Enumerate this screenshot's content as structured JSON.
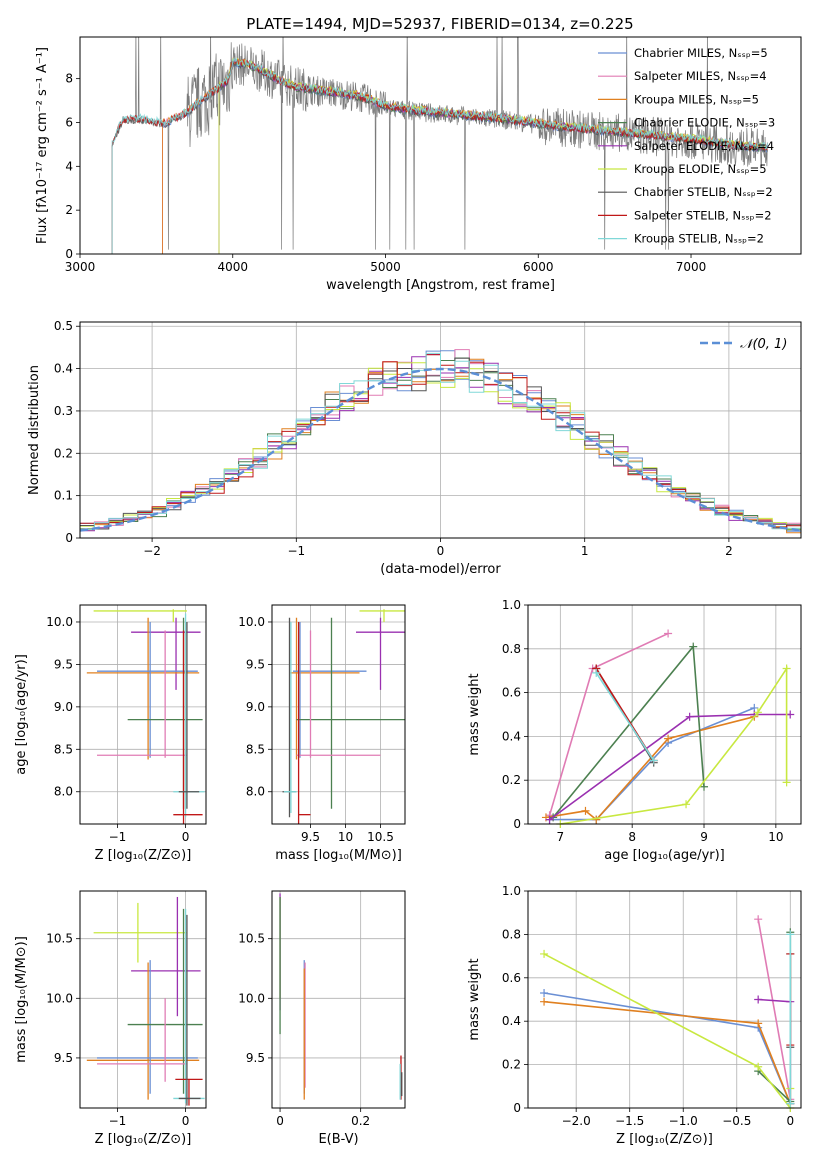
{
  "figure": {
    "title": "PLATE=1494, MJD=52937, FIBERID=0134, z=0.225"
  },
  "chart_data": [
    {
      "id": "spectrum",
      "type": "line",
      "xlabel": "wavelength [Angstrom, rest frame]",
      "ylabel": "Flux [fλ10⁻¹⁷ erg cm⁻² s⁻¹ A⁻¹]",
      "xlim": [
        3000,
        7720
      ],
      "ylim": [
        0,
        9.9
      ],
      "xticks": [
        3000,
        4000,
        5000,
        6000,
        7000
      ],
      "yticks": [
        0,
        2,
        4,
        6,
        8
      ],
      "legend_position": "top-right",
      "series": [
        {
          "name": "Chabrier MILES, Nₛₛₚ=5",
          "color": "#6a8fd4",
          "start": 3540
        },
        {
          "name": "Salpeter MILES, Nₛₛₚ=4",
          "color": "#e07bb4",
          "start": 3540
        },
        {
          "name": "Kroupa MILES, Nₛₛₚ=5",
          "color": "#e08020",
          "start": 3540
        },
        {
          "name": "Chabrier ELODIE, Nₛₛₚ=3",
          "color": "#4c8050",
          "start": 3910
        },
        {
          "name": "Salpeter ELODIE, Nₛₛₚ=4",
          "color": "#9a30b0",
          "start": 3910
        },
        {
          "name": "Kroupa ELODIE, Nₛₛₚ=5",
          "color": "#c8e840",
          "start": 3910
        },
        {
          "name": "Chabrier STELIB, Nₛₛₚ=2",
          "color": "#555555",
          "start": 3210
        },
        {
          "name": "Salpeter STELIB, Nₛₛₚ=2",
          "color": "#c01818",
          "start": 3210
        },
        {
          "name": "Kroupa STELIB, Nₛₛₚ=2",
          "color": "#80d8d8",
          "start": 3210
        }
      ],
      "model_shape": {
        "x": [
          3210,
          3280,
          3400,
          3550,
          3700,
          3800,
          3900,
          3970,
          4000,
          4100,
          4200,
          4300,
          4400,
          4500,
          4600,
          4800,
          4900,
          5000,
          5200,
          5500,
          5800,
          6100,
          6400,
          6700,
          7000,
          7300,
          7500
        ],
        "y": [
          5.0,
          6.1,
          6.1,
          5.9,
          6.4,
          7.0,
          7.5,
          7.9,
          8.7,
          8.6,
          8.3,
          7.9,
          7.6,
          7.5,
          7.4,
          7.2,
          7.0,
          6.7,
          6.5,
          6.3,
          6.1,
          5.8,
          5.6,
          5.4,
          5.2,
          4.9,
          4.8
        ]
      }
    },
    {
      "id": "residuals",
      "type": "step",
      "xlabel": "(data-model)/error",
      "ylabel": "Normed distribution",
      "xlim": [
        -2.5,
        2.5
      ],
      "ylim": [
        0,
        0.51
      ],
      "xticks": [
        -2,
        -1,
        0,
        1,
        2
      ],
      "yticks": [
        0.0,
        0.1,
        0.2,
        0.3,
        0.4,
        0.5
      ],
      "legend": [
        {
          "name": "𝒩(0, 1)",
          "color": "#5b8fd6",
          "style": "dashed"
        }
      ],
      "legend_position": "top-right",
      "grid": true
    },
    {
      "id": "age-vs-Z",
      "type": "errorbar",
      "xlabel": "Z [log₁₀(Z/Z⊙)]",
      "ylabel": "age  [log₁₀(age/yr)]",
      "xlim": [
        -1.55,
        0.3
      ],
      "ylim": [
        7.62,
        10.2
      ],
      "xticks": [
        -1,
        0
      ],
      "yticks": [
        8.0,
        8.5,
        9.0,
        9.5,
        10.0
      ],
      "grid": true
    },
    {
      "id": "age-vs-mass",
      "type": "errorbar",
      "xlabel": "mass [log₁₀(M/M⊙)]",
      "ylabel": "",
      "xlim": [
        8.95,
        10.85
      ],
      "ylim": [
        7.62,
        10.2
      ],
      "xticks": [
        9.5,
        10.0,
        10.5
      ],
      "yticks": [
        8.0,
        8.5,
        9.0,
        9.5,
        10.0
      ],
      "grid": true
    },
    {
      "id": "weight-vs-age",
      "type": "line",
      "xlabel": "age  [log₁₀(age/yr)]",
      "ylabel": "mass weight",
      "xlim": [
        6.55,
        10.35
      ],
      "ylim": [
        0,
        1.0
      ],
      "xticks": [
        7,
        8,
        9,
        10
      ],
      "yticks": [
        0.0,
        0.2,
        0.4,
        0.6,
        0.8,
        1.0
      ],
      "grid": true,
      "series": [
        {
          "color": "#6a8fd4",
          "x": [
            6.85,
            7.5,
            8.5,
            9.7
          ],
          "y": [
            0.02,
            0.02,
            0.37,
            0.53
          ]
        },
        {
          "color": "#e07bb4",
          "x": [
            6.85,
            7.45,
            8.5
          ],
          "y": [
            0.04,
            0.71,
            0.87
          ]
        },
        {
          "color": "#e08020",
          "x": [
            6.8,
            7.35,
            7.5,
            8.5,
            9.7
          ],
          "y": [
            0.03,
            0.06,
            0.02,
            0.39,
            0.49
          ]
        },
        {
          "color": "#4c8050",
          "x": [
            6.9,
            8.85,
            9.0
          ],
          "y": [
            0.03,
            0.81,
            0.17
          ]
        },
        {
          "color": "#9a30b0",
          "x": [
            6.85,
            8.8,
            9.7,
            10.2
          ],
          "y": [
            0.02,
            0.49,
            0.5,
            0.5
          ]
        },
        {
          "color": "#c8e840",
          "x": [
            7.0,
            8.75,
            9.75,
            10.15,
            10.15
          ],
          "y": [
            0.0,
            0.09,
            0.51,
            0.71,
            0.19
          ]
        },
        {
          "color": "#555555",
          "x": [
            7.5,
            8.3
          ],
          "y": [
            0.71,
            0.28
          ]
        },
        {
          "color": "#c01818",
          "x": [
            7.5,
            8.3
          ],
          "y": [
            0.71,
            0.29
          ]
        },
        {
          "color": "#80d8d8",
          "x": [
            7.5,
            8.3
          ],
          "y": [
            0.69,
            0.29
          ]
        }
      ]
    },
    {
      "id": "mass-vs-Z",
      "type": "errorbar",
      "xlabel": "Z [log₁₀(Z/Z⊙)]",
      "ylabel": "mass [log₁₀(M/M⊙)]",
      "xlim": [
        -1.55,
        0.3
      ],
      "ylim": [
        9.08,
        10.9
      ],
      "xticks": [
        -1,
        0
      ],
      "yticks": [
        9.5,
        10.0,
        10.5
      ],
      "grid": true
    },
    {
      "id": "mass-vs-ebv",
      "type": "errorbar",
      "xlabel": "E(B-V)",
      "ylabel": "",
      "xlim": [
        -0.02,
        0.31
      ],
      "ylim": [
        9.08,
        10.9
      ],
      "xticks": [
        0.0,
        0.2
      ],
      "yticks": [
        9.5,
        10.0,
        10.5
      ],
      "grid": true
    },
    {
      "id": "weight-vs-Z",
      "type": "line",
      "xlabel": "Z [log₁₀(Z/Z⊙)]",
      "ylabel": "mass weight",
      "xlim": [
        -2.45,
        0.1
      ],
      "ylim": [
        0,
        1.0
      ],
      "xticks": [
        -2.0,
        -1.5,
        -1.0,
        -0.5,
        0.0
      ],
      "yticks": [
        0.0,
        0.2,
        0.4,
        0.6,
        0.8,
        1.0
      ],
      "grid": true,
      "series": [
        {
          "color": "#6a8fd4",
          "x": [
            -2.3,
            -0.3,
            0.0
          ],
          "y": [
            0.53,
            0.37,
            0.02
          ]
        },
        {
          "color": "#e07bb4",
          "x": [
            -0.3,
            0.0
          ],
          "y": [
            0.87,
            0.04
          ]
        },
        {
          "color": "#e08020",
          "x": [
            -2.3,
            -0.3,
            0.0
          ],
          "y": [
            0.49,
            0.39,
            0.02
          ]
        },
        {
          "color": "#4c8050",
          "x": [
            -0.3,
            0.0,
            0.0
          ],
          "y": [
            0.17,
            0.03,
            0.81
          ]
        },
        {
          "color": "#9a30b0",
          "x": [
            -0.3,
            0.0,
            0.0
          ],
          "y": [
            0.5,
            0.49,
            0.02
          ]
        },
        {
          "color": "#c8e840",
          "x": [
            -2.3,
            -0.3,
            0.0,
            0.0
          ],
          "y": [
            0.71,
            0.19,
            0.0,
            0.09
          ]
        },
        {
          "color": "#555555",
          "x": [
            0.0,
            0.0
          ],
          "y": [
            0.71,
            0.28
          ]
        },
        {
          "color": "#c01818",
          "x": [
            0.0,
            0.0
          ],
          "y": [
            0.71,
            0.29
          ]
        },
        {
          "color": "#80d8d8",
          "x": [
            0.0,
            0.0
          ],
          "y": [
            0.8,
            0.02
          ]
        }
      ]
    }
  ]
}
